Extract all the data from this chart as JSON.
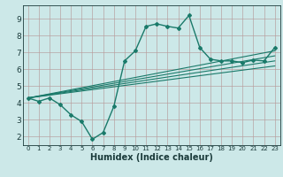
{
  "xlabel": "Humidex (Indice chaleur)",
  "xlim": [
    -0.5,
    23.5
  ],
  "ylim": [
    1.5,
    9.8
  ],
  "xticks": [
    0,
    1,
    2,
    3,
    4,
    5,
    6,
    7,
    8,
    9,
    10,
    11,
    12,
    13,
    14,
    15,
    16,
    17,
    18,
    19,
    20,
    21,
    22,
    23
  ],
  "yticks": [
    2,
    3,
    4,
    5,
    6,
    7,
    8,
    9
  ],
  "bg_color": "#cce8e8",
  "grid_major_color": "#aacece",
  "grid_minor_color": "#bbdada",
  "line_color": "#1a7a6a",
  "main_x": [
    0,
    1,
    2,
    3,
    4,
    5,
    6,
    7,
    8,
    9,
    10,
    11,
    12,
    13,
    14,
    15,
    16,
    17,
    18,
    19,
    20,
    21,
    22,
    23
  ],
  "main_y": [
    4.3,
    4.1,
    4.3,
    3.9,
    3.3,
    2.9,
    1.85,
    2.25,
    3.8,
    6.5,
    7.1,
    8.55,
    8.7,
    8.55,
    8.45,
    9.2,
    7.3,
    6.6,
    6.5,
    6.5,
    6.4,
    6.55,
    6.5,
    7.3
  ],
  "trend_lines": [
    {
      "x0": 0,
      "y0": 4.3,
      "x1": 23,
      "y1": 6.2
    },
    {
      "x0": 0,
      "y0": 4.3,
      "x1": 23,
      "y1": 6.5
    },
    {
      "x0": 0,
      "y0": 4.3,
      "x1": 23,
      "y1": 6.8
    },
    {
      "x0": 0,
      "y0": 4.3,
      "x1": 23,
      "y1": 7.1
    }
  ]
}
